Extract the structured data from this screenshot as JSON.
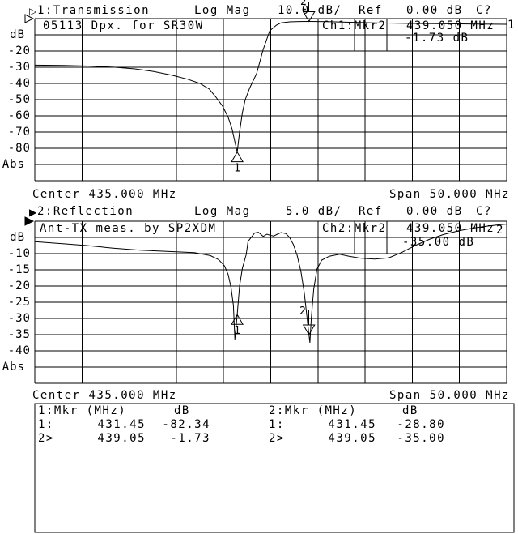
{
  "app": {
    "background": "#ffffff",
    "foreground": "#000000"
  },
  "chart1": {
    "channel_marker": "▷",
    "title": "1:Transmission",
    "format": "Log Mag",
    "scale": "10.0 dB/",
    "ref_label": "Ref",
    "ref_value": "0.00 dB",
    "cal_status": "C?",
    "annotation": "05113 Dpx. for SR30W",
    "readout_label": "Ch1:Mkr2",
    "readout_freq": "439.050 MHz",
    "readout_value": "-1.73 dB",
    "trace_label": "1"
  },
  "chart2": {
    "channel_marker": "▶",
    "title": "2:Reflection",
    "format": "Log Mag",
    "scale": "5.0 dB/",
    "ref_label": "Ref",
    "ref_value": "0.00 dB",
    "cal_status": "C?",
    "annotation": "Ant-TX meas. by SP2XDM",
    "readout_label": "Ch2:Mkr2",
    "readout_freq": "439.050 MHz",
    "readout_value": "-35.00 dB",
    "trace_label": "2"
  },
  "footer1": {
    "center": "Center 435.000 MHz",
    "span": "Span 50.000 MHz"
  },
  "footer2": {
    "center": "Center 435.000 MHz",
    "span": "Span 50.000 MHz"
  },
  "marker_table": {
    "col1": {
      "header_label": "1:Mkr (MHz)",
      "header_unit": "dB",
      "rows": [
        [
          "1:",
          "431.45",
          "-82.34"
        ],
        [
          "2>",
          "439.05",
          "-1.73"
        ]
      ]
    },
    "col2": {
      "header_label": "2:Mkr (MHz)",
      "header_unit": "dB",
      "rows": [
        [
          "1:",
          "431.45",
          "-28.80"
        ],
        [
          "2>",
          "439.05",
          "-35.00"
        ]
      ]
    }
  },
  "chart_data": [
    {
      "type": "line",
      "name": "transmission",
      "title": "1:Transmission  Log Mag",
      "ylabel": "dB",
      "center_mhz": 435,
      "span_mhz": 50,
      "xlim": [
        410,
        460
      ],
      "ylim": [
        -100,
        0
      ],
      "db_per_div": 10,
      "ref_db": 0,
      "grid": true,
      "y_axis_labels": [
        "dB",
        "-20",
        "-30",
        "-40",
        "-50",
        "-60",
        "-70",
        "-80",
        "Abs"
      ],
      "x": [
        410,
        413,
        416,
        418.5,
        420.6,
        422.6,
        424.6,
        426.2,
        427.5,
        428.5,
        429.2,
        429.9,
        430.5,
        430.9,
        431.2,
        431.45,
        431.7,
        432,
        432.3,
        432.8,
        433.5,
        434.2,
        434.9,
        435.6,
        436.1,
        437,
        438,
        439.05,
        441,
        443,
        446,
        450,
        454,
        457,
        460
      ],
      "y": [
        -28.7,
        -28.9,
        -29.3,
        -30,
        -31,
        -32.6,
        -35,
        -37.4,
        -40,
        -43.5,
        -48.5,
        -54,
        -61,
        -68,
        -76,
        -82.34,
        -70,
        -58,
        -50,
        -42.5,
        -34,
        -19,
        -7.5,
        -4,
        -2.6,
        -2,
        -1.8,
        -1.73,
        -1.9,
        -2.2,
        -2.6,
        -3,
        -3.2,
        -3.4,
        -3.5
      ],
      "markers": [
        {
          "label": "1",
          "x_mhz": 431.45,
          "y_db": -82.34,
          "style": "up"
        },
        {
          "label": "2",
          "x_mhz": 439.05,
          "y_db": -1.73,
          "style": "down"
        }
      ]
    },
    {
      "type": "line",
      "name": "reflection",
      "title": "2:Reflection  Log Mag",
      "ylabel": "dB",
      "center_mhz": 435,
      "span_mhz": 50,
      "xlim": [
        410,
        460
      ],
      "ylim": [
        -50,
        0
      ],
      "db_per_div": 5,
      "ref_db": 0,
      "grid": true,
      "y_axis_labels": [
        "dB",
        "-10",
        "-15",
        "-20",
        "-25",
        "-30",
        "-35",
        "-40",
        "Abs"
      ],
      "x": [
        410,
        412.8,
        415.5,
        418.3,
        421,
        424,
        426.9,
        428.6,
        429.5,
        430.1,
        430.5,
        430.8,
        431.05,
        431.2,
        431.45,
        431.7,
        432,
        432.4,
        432.6,
        432.9,
        433.3,
        433.7,
        434.2,
        434.6,
        434.9,
        435.3,
        435.7,
        436.1,
        436.6,
        437,
        437.4,
        437.8,
        438.2,
        438.55,
        438.8,
        439.05,
        439.15,
        439.3,
        439.55,
        439.9,
        440.4,
        441.2,
        442.3,
        443.3,
        444.5,
        446,
        447.5,
        448.9,
        450.3,
        451.8,
        453.3,
        455,
        456.5,
        458,
        459.2,
        460
      ],
      "y": [
        -6.3,
        -6.9,
        -7.5,
        -8.3,
        -8.9,
        -9.3,
        -9.7,
        -10.6,
        -11.9,
        -13.8,
        -16.5,
        -20.5,
        -26,
        -36.5,
        -28.8,
        -20,
        -14.5,
        -10.3,
        -6.2,
        -5.1,
        -3.6,
        -3.4,
        -4.7,
        -4,
        -4.3,
        -4.6,
        -4,
        -3.5,
        -3.8,
        -5,
        -7.2,
        -10.5,
        -15.5,
        -22,
        -28.5,
        -35,
        -37.5,
        -30,
        -21,
        -14.8,
        -12,
        -10.8,
        -10.2,
        -10.8,
        -11.4,
        -11.7,
        -11.3,
        -9.6,
        -7.5,
        -5.6,
        -4.1,
        -2.9,
        -2.1,
        -1.5,
        -1.1,
        -0.9
      ],
      "markers": [
        {
          "label": "1",
          "x_mhz": 431.45,
          "y_db": -28.8,
          "style": "up"
        },
        {
          "label": "2",
          "x_mhz": 439.05,
          "y_db": -35.0,
          "style": "down"
        }
      ]
    }
  ]
}
